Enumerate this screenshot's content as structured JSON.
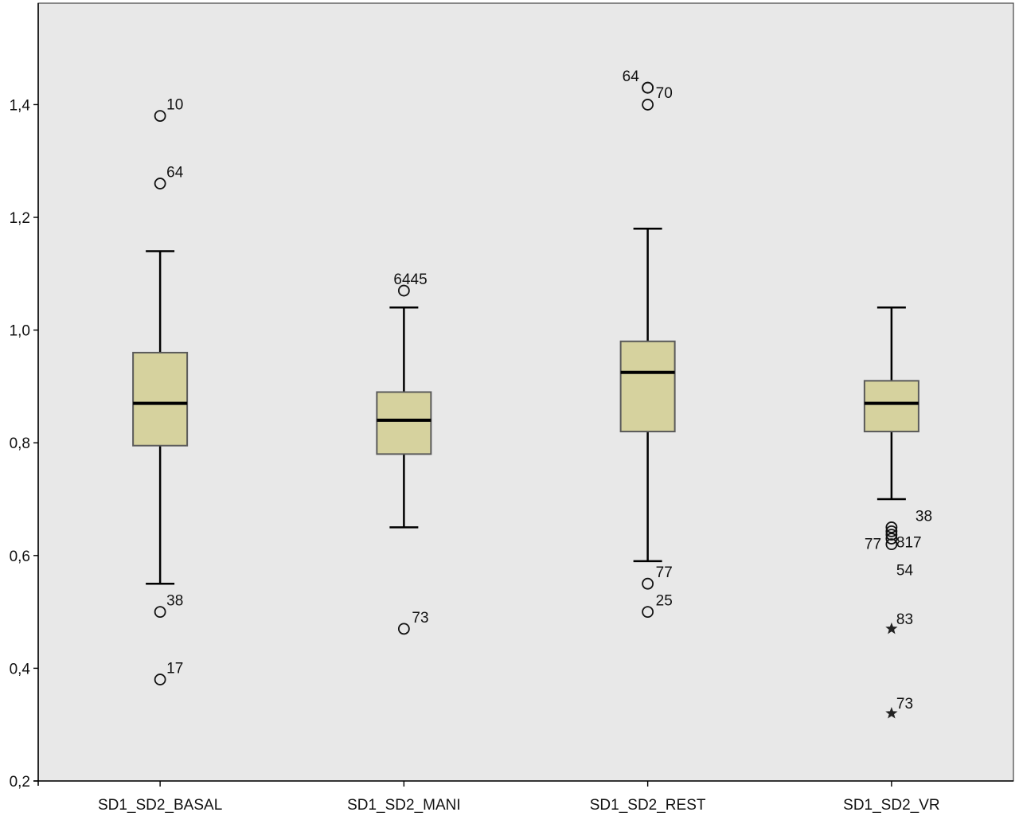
{
  "chart_data": {
    "type": "boxplot",
    "title": "",
    "xlabel": "",
    "ylabel": "",
    "ylim": [
      0.2,
      1.58
    ],
    "yticks": [
      0.2,
      0.4,
      0.6,
      0.8,
      1.0,
      1.2,
      1.4
    ],
    "ytick_labels": [
      "0,2",
      "0,4",
      "0,6",
      "0,8",
      "1,0",
      "1,2",
      "1,4"
    ],
    "grid": false,
    "colors": {
      "plot_background": "#e8e8e8",
      "box_fill": "#d6d29e",
      "box_edge": "#5a5a5a",
      "median": "#000000",
      "axis": "#000000"
    },
    "categories": [
      "SD1_SD2_BASAL",
      "SD1_SD2_MANI",
      "SD1_SD2_REST",
      "SD1_SD2_VR"
    ],
    "boxes": [
      {
        "category": "SD1_SD2_BASAL",
        "whisker_low": 0.55,
        "q1": 0.795,
        "median": 0.87,
        "q3": 0.96,
        "whisker_high": 1.14,
        "outliers": [
          {
            "value": 1.38,
            "label": "10",
            "marker": "circle"
          },
          {
            "value": 1.26,
            "label": "64",
            "marker": "circle"
          },
          {
            "value": 0.5,
            "label": "38",
            "marker": "circle"
          },
          {
            "value": 0.38,
            "label": "17",
            "marker": "circle"
          }
        ]
      },
      {
        "category": "SD1_SD2_MANI",
        "whisker_low": 0.65,
        "q1": 0.78,
        "median": 0.84,
        "q3": 0.89,
        "whisker_high": 1.04,
        "outliers": [
          {
            "value": 1.07,
            "label": "6445",
            "marker": "circle"
          },
          {
            "value": 0.47,
            "label": "73",
            "marker": "circle"
          }
        ]
      },
      {
        "category": "SD1_SD2_REST",
        "whisker_low": 0.59,
        "q1": 0.82,
        "median": 0.925,
        "q3": 0.98,
        "whisker_high": 1.18,
        "outliers": [
          {
            "value": 1.43,
            "label": "64",
            "marker": "circle"
          },
          {
            "value": 1.43,
            "label": "70",
            "marker": "circle"
          },
          {
            "value": 1.4,
            "label": "",
            "marker": "circle"
          },
          {
            "value": 0.55,
            "label": "77",
            "marker": "circle"
          },
          {
            "value": 0.5,
            "label": "25",
            "marker": "circle"
          }
        ]
      },
      {
        "category": "SD1_SD2_VR",
        "whisker_low": 0.7,
        "q1": 0.82,
        "median": 0.87,
        "q3": 0.91,
        "whisker_high": 1.04,
        "outliers": [
          {
            "value": 0.65,
            "label": "38",
            "marker": "circle"
          },
          {
            "value": 0.643,
            "label": "817",
            "marker": "circle"
          },
          {
            "value": 0.637,
            "label": "",
            "marker": "circle"
          },
          {
            "value": 0.63,
            "label": "77",
            "marker": "circle"
          },
          {
            "value": 0.62,
            "label": "54",
            "marker": "circle"
          },
          {
            "value": 0.47,
            "label": "83",
            "marker": "star"
          },
          {
            "value": 0.32,
            "label": "73",
            "marker": "star"
          }
        ]
      }
    ]
  }
}
